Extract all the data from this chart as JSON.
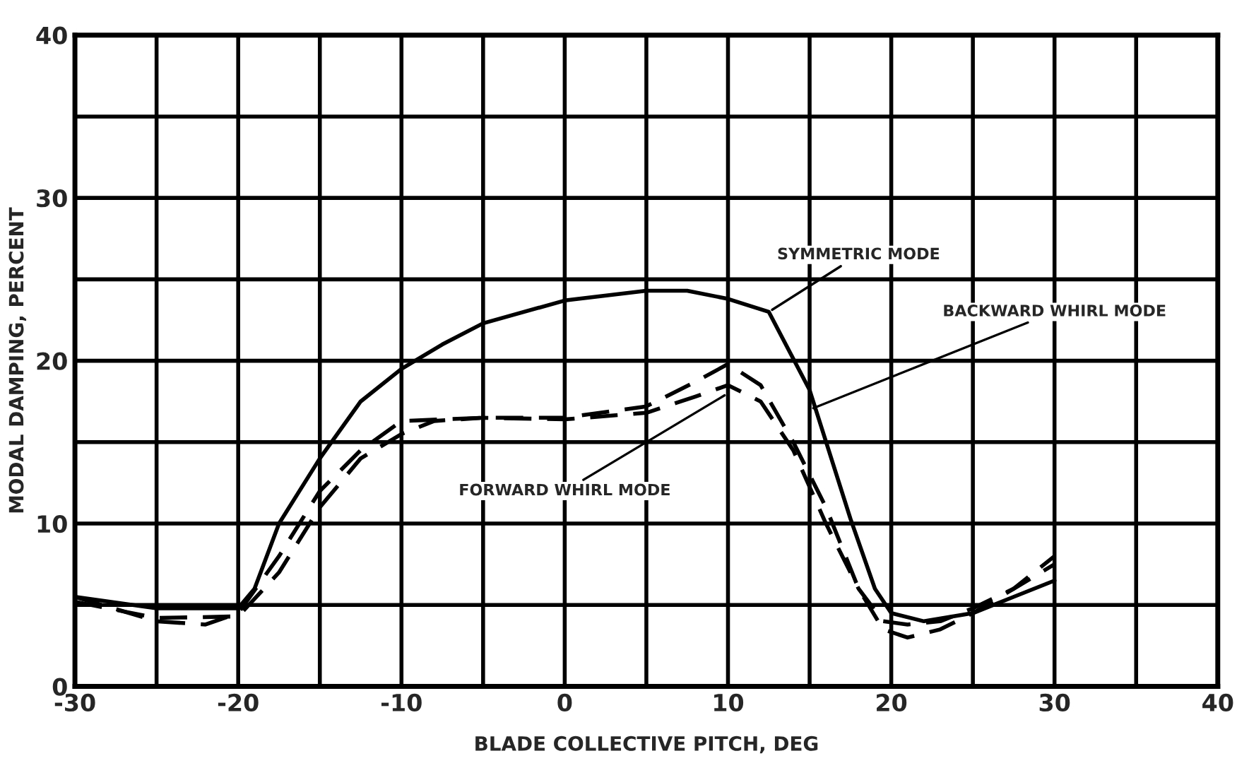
{
  "chart_data": {
    "type": "line",
    "xlabel": "BLADE COLLECTIVE PITCH, DEG",
    "ylabel": "MODAL DAMPING, PERCENT",
    "xlim": [
      -30,
      40
    ],
    "ylim": [
      0,
      40
    ],
    "xticks": [
      -30,
      {
        "value": -25,
        "label": null
      },
      -20,
      {
        "value": -15,
        "label": null
      },
      -10,
      {
        "value": -5,
        "label": null
      },
      0,
      {
        "value": 5,
        "label": null
      },
      10,
      {
        "value": 15,
        "label": null
      },
      20,
      {
        "value": 25,
        "label": null
      },
      30,
      {
        "value": 35,
        "label": null
      },
      40
    ],
    "yticks": [
      0,
      {
        "value": 5,
        "label": null
      },
      10,
      {
        "value": 15,
        "label": null
      },
      20,
      {
        "value": 25,
        "label": null
      },
      30,
      {
        "value": 35,
        "label": null
      },
      40
    ],
    "grid": true,
    "legend": false,
    "annotations": [
      {
        "text": "SYMMETRIC MODE",
        "x": 12.5,
        "y": 23
      },
      {
        "text": "BACKWARD WHIRL MODE",
        "x": 15,
        "y": 17
      },
      {
        "text": "FORWARD WHIRL MODE",
        "x": 10,
        "y": 18
      }
    ],
    "series": [
      {
        "color": "#000000",
        "line_style": "solid",
        "x": [
          -30,
          -25,
          -20,
          -19,
          -17.5,
          -15,
          -12.5,
          -10,
          -7.5,
          -5,
          0,
          5,
          7.5,
          10,
          12.5,
          15,
          17.5,
          19,
          20,
          22,
          25,
          27.5,
          30
        ],
        "values": [
          5.5,
          4.8,
          4.8,
          6,
          10,
          14,
          17.5,
          19.5,
          21,
          22.3,
          23.7,
          24.3,
          24.3,
          23.8,
          23,
          18.2,
          10.3,
          6,
          4.5,
          4,
          4.5,
          5.5,
          6.5
        ]
      },
      {
        "color": "#000000",
        "line_style": "dashed",
        "x": [
          -30,
          -25,
          -22,
          -20,
          -17.5,
          -15,
          -12.5,
          -10,
          -5,
          0,
          5,
          8,
          10,
          12,
          14,
          16,
          18,
          19.5,
          21,
          23,
          25,
          27.5,
          30
        ],
        "values": [
          5.5,
          4,
          3.8,
          4.5,
          8,
          12,
          14.5,
          16.3,
          16.5,
          16.5,
          17.2,
          18.7,
          19.8,
          18.5,
          15,
          11,
          6,
          3.5,
          3,
          3.5,
          4.5,
          6,
          8
        ]
      },
      {
        "color": "#000000",
        "line_style": "dashed",
        "x": [
          -30,
          -25,
          -20,
          -17.5,
          -15,
          -12.5,
          -10,
          -8,
          -5,
          0,
          5,
          8,
          10,
          12,
          14,
          16,
          18,
          19.5,
          21,
          23,
          25,
          27.5,
          30
        ],
        "values": [
          5.2,
          4.2,
          4.3,
          7,
          11,
          14,
          15.5,
          16.3,
          16.5,
          16.4,
          16.8,
          17.8,
          18.5,
          17.5,
          14.5,
          10,
          6,
          4,
          3.8,
          4,
          4.8,
          6,
          7.5
        ]
      }
    ]
  }
}
